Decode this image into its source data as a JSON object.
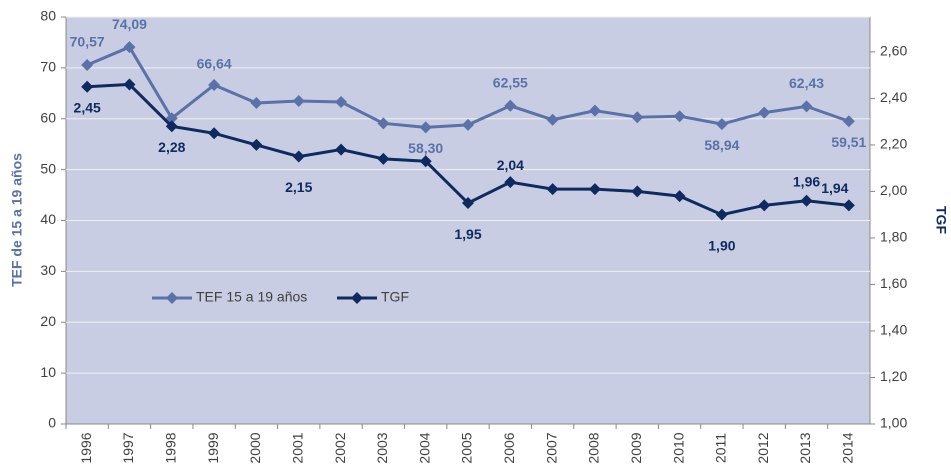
{
  "chart_data": {
    "type": "line",
    "y_label": "TEF de 15 a 19 años",
    "y2_label": "TGF",
    "categories": [
      "1996",
      "1997",
      "1998",
      "1999",
      "2000",
      "2001",
      "2002",
      "2003",
      "2004",
      "2005",
      "2006",
      "2007",
      "2008",
      "2009",
      "2010",
      "2011",
      "2012",
      "2013",
      "2014"
    ],
    "series": [
      {
        "name": "TEF 15 a 19 años",
        "color": "#5a72a8",
        "values": [
          70.57,
          74.09,
          60.1,
          66.64,
          63.1,
          63.5,
          63.3,
          59.1,
          58.3,
          58.8,
          62.55,
          59.8,
          61.6,
          60.3,
          60.5,
          58.94,
          61.2,
          62.43,
          59.51
        ],
        "value_labels": [
          "70,57",
          "74,09",
          null,
          "66,64",
          null,
          null,
          null,
          null,
          "58,30",
          null,
          "62,55",
          null,
          null,
          null,
          null,
          "58,94",
          null,
          "62,43",
          "59,51"
        ]
      },
      {
        "name": "TGF",
        "color": "#0e2a5e",
        "axis": "y2",
        "values": [
          2.45,
          2.46,
          2.28,
          2.25,
          2.2,
          2.15,
          2.18,
          2.14,
          2.13,
          1.95,
          2.04,
          2.01,
          2.01,
          2.0,
          1.98,
          1.9,
          1.94,
          1.96,
          1.94
        ],
        "value_labels": [
          "2,45",
          null,
          "2,28",
          null,
          null,
          "2,15",
          null,
          null,
          null,
          "1,95",
          "2,04",
          null,
          null,
          null,
          null,
          "1,90",
          null,
          "1,96",
          "1,94"
        ]
      }
    ],
    "ylim": [
      0,
      80
    ],
    "yticks": [
      0,
      10,
      20,
      30,
      40,
      50,
      60,
      70,
      80
    ],
    "y2lim": [
      1.0,
      2.75
    ],
    "y2ticks": [
      {
        "value": 1.0,
        "label": "1,00"
      },
      {
        "value": 1.2,
        "label": "1,20"
      },
      {
        "value": 1.4,
        "label": "1,40"
      },
      {
        "value": 1.6,
        "label": "1,60"
      },
      {
        "value": 1.8,
        "label": "1,80"
      },
      {
        "value": 2.0,
        "label": "2,00"
      },
      {
        "value": 2.2,
        "label": "2,20"
      },
      {
        "value": 2.4,
        "label": "2,40"
      },
      {
        "value": 2.6,
        "label": "2,60"
      }
    ],
    "grid": true,
    "legend": "lower left"
  }
}
